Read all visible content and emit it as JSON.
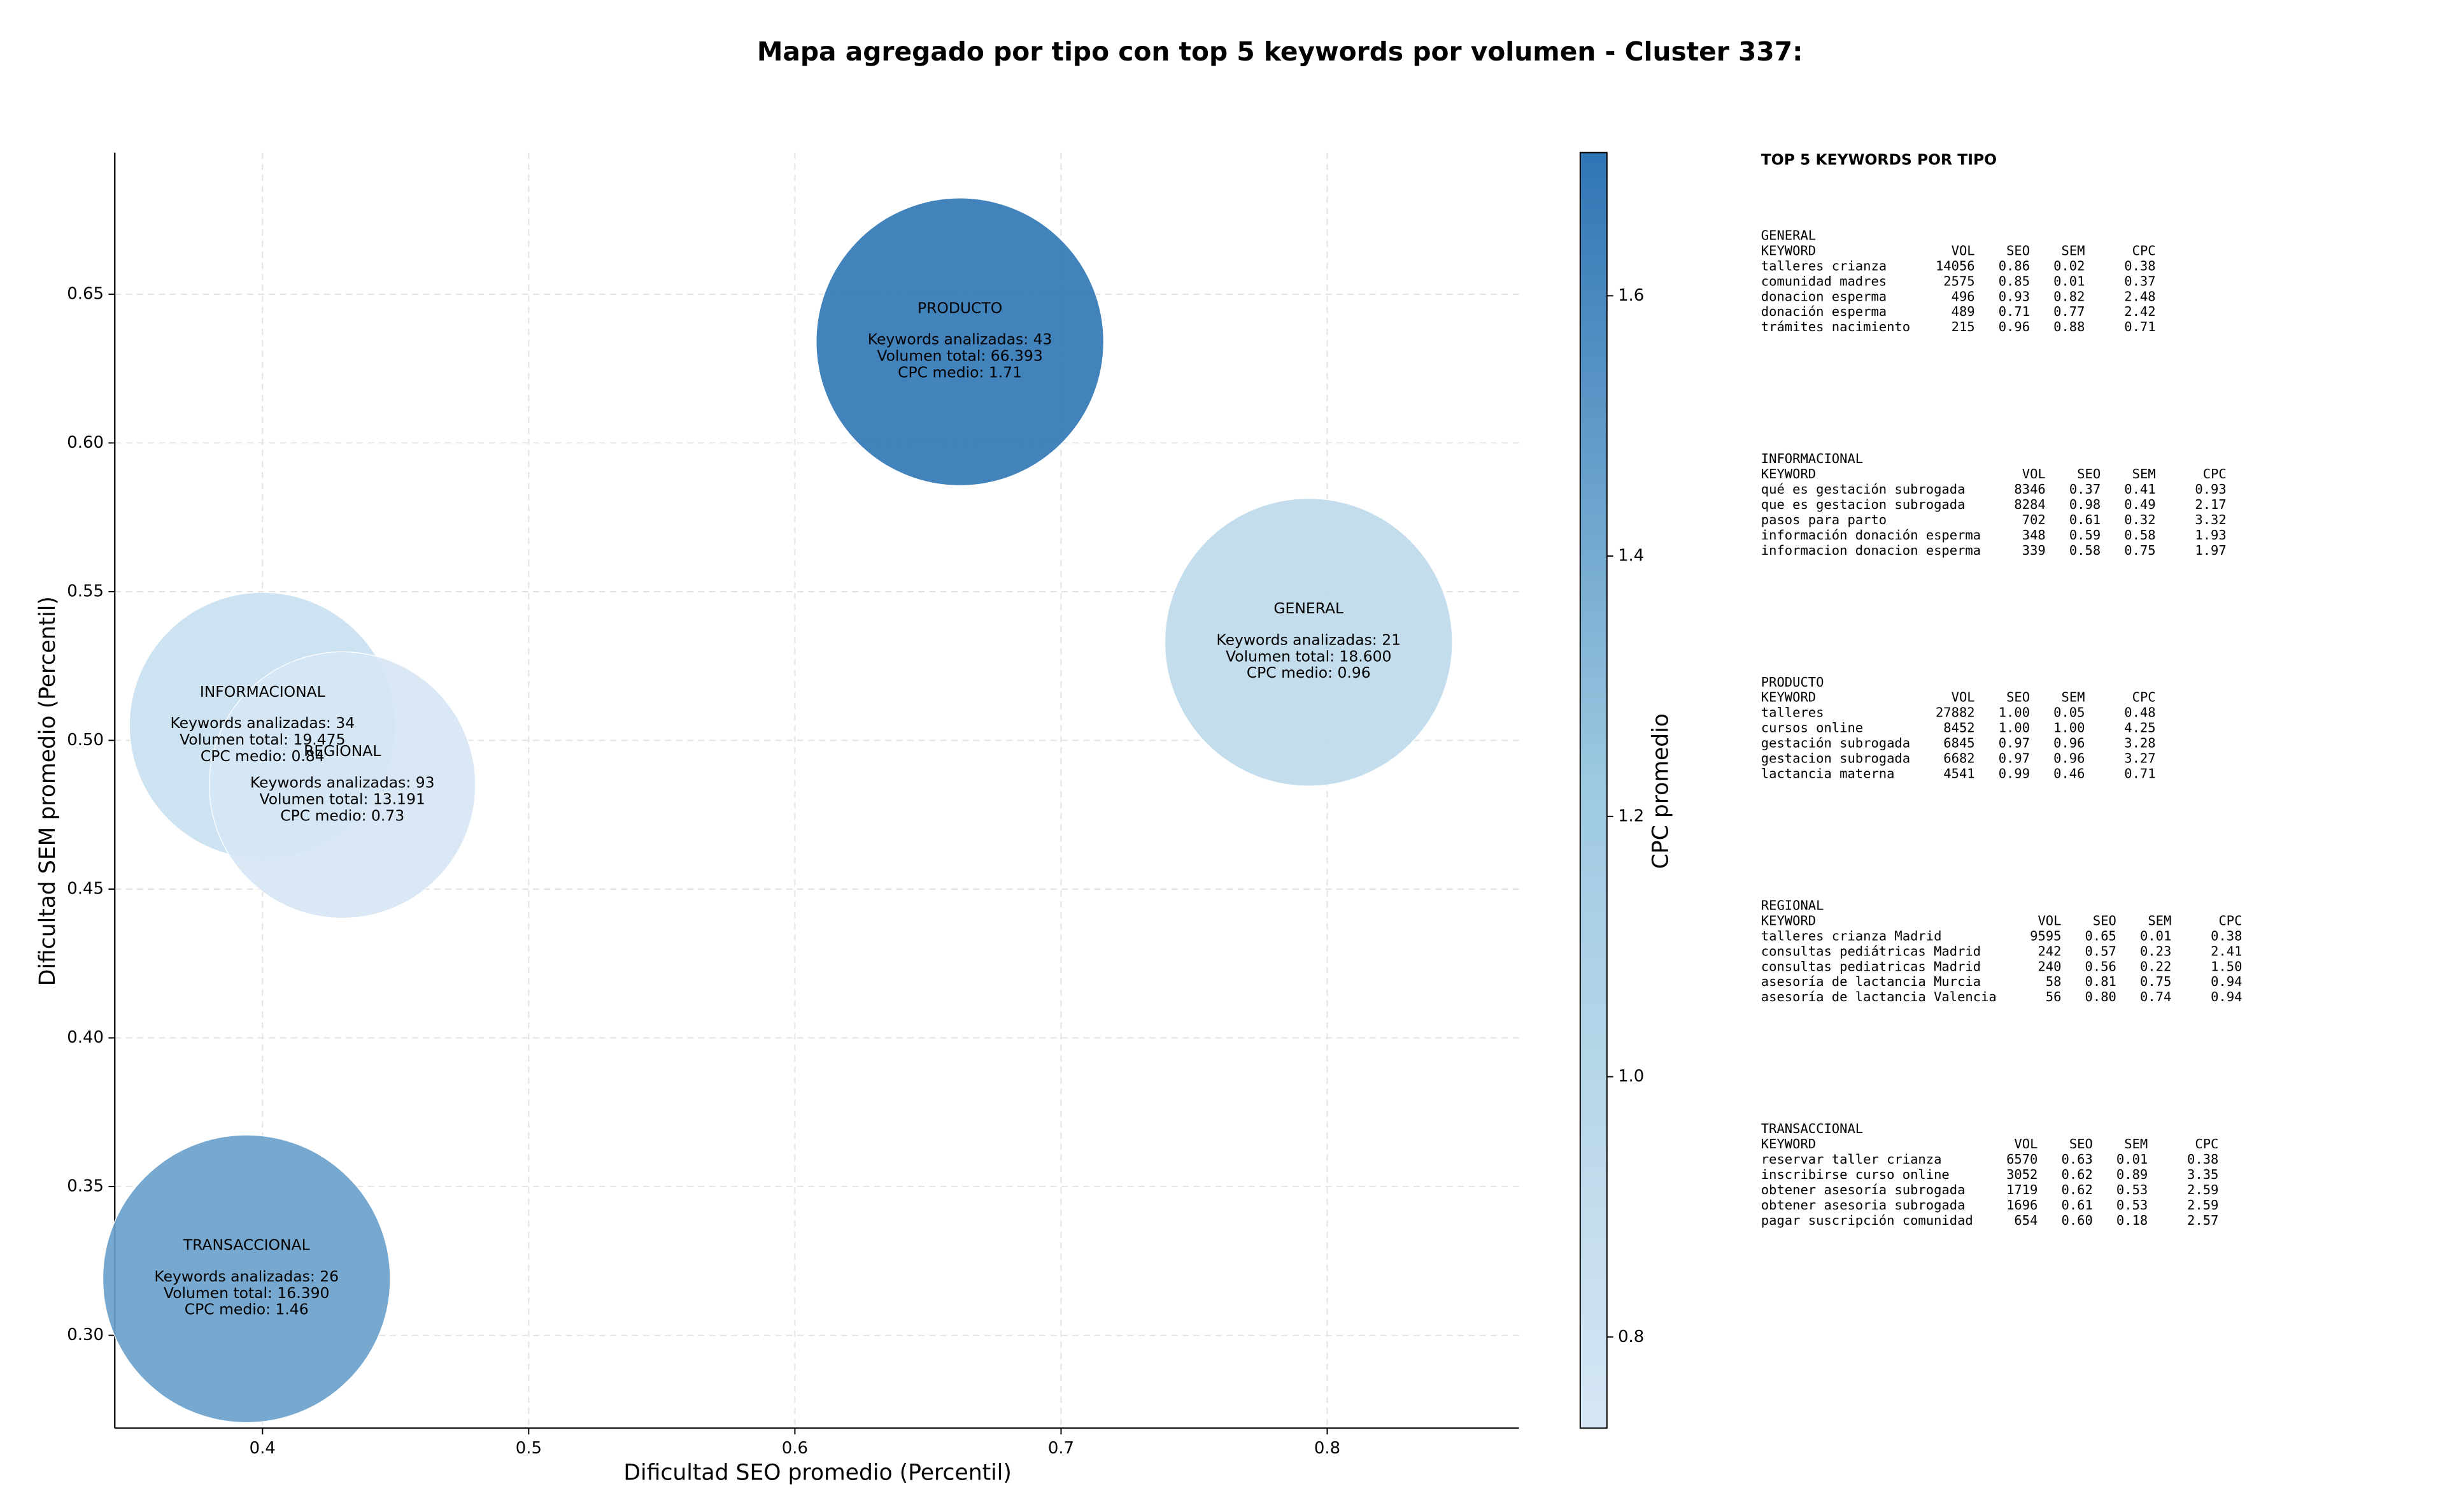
{
  "chart_data": {
    "type": "bubble",
    "title": "Mapa agregado por tipo con top 5 keywords por volumen - Cluster 337:",
    "xlabel": "Dificultad SEO promedio (Percentil)",
    "ylabel": "Dificultad SEM promedio (Percentil)",
    "categories": [
      "GENERAL",
      "INFORMACIONAL",
      "PRODUCTO",
      "REGIONAL",
      "TRANSACCIONAL"
    ],
    "x": [
      0.793,
      0.4,
      0.662,
      0.43,
      0.394
    ],
    "values": [
      0.533,
      0.505,
      0.634,
      0.485,
      0.319
    ],
    "sizes": [
      0.054,
      0.05,
      0.054,
      0.05,
      0.054
    ],
    "color_values": [
      0.96,
      0.84,
      1.71,
      0.73,
      1.46
    ],
    "annotations": [
      [
        "Keywords analizadas: 21",
        "Volumen total: 18.600",
        "CPC medio: 0.96"
      ],
      [
        "Keywords analizadas: 34",
        "Volumen total: 19.475",
        "CPC medio: 0.84"
      ],
      [
        "Keywords analizadas: 43",
        "Volumen total: 66.393",
        "CPC medio: 1.71"
      ],
      [
        "Keywords analizadas: 93",
        "Volumen total: 13.191",
        "CPC medio: 0.73"
      ],
      [
        "Keywords analizadas: 26",
        "Volumen total: 16.390",
        "CPC medio: 1.46"
      ]
    ],
    "xlim": [
      0.3445,
      0.872
    ],
    "ylim": [
      0.2688,
      0.6976
    ],
    "xticks": [
      0.4,
      0.5,
      0.6,
      0.7,
      0.8
    ],
    "yticks": [
      {
        "value": 0.3,
        "label": "0.30"
      },
      0.35,
      {
        "value": 0.4,
        "label": "0.40"
      },
      0.45,
      {
        "value": 0.5,
        "label": "0.50"
      },
      0.55,
      {
        "value": 0.6,
        "label": "0.60"
      },
      0.65
    ],
    "clim": [
      0.73,
      1.71
    ],
    "cticks": [
      0.8,
      {
        "value": 1.0,
        "label": "1.0"
      },
      1.2,
      1.4,
      1.6
    ],
    "colorbar_label": "CPC promedio",
    "colorscale": [
      "#d6e6f4",
      "#9ecae1",
      "#2f75b5"
    ],
    "grid": true
  },
  "side_panel": {
    "title": "TOP 5 KEYWORDS POR TIPO",
    "groups": [
      {
        "name": "GENERAL",
        "columns": [
          "KEYWORD",
          "VOL",
          "SEO",
          "SEM",
          "CPC"
        ],
        "rows": [
          [
            "talleres crianza",
            "14056",
            "0.86",
            "0.02",
            "0.38"
          ],
          [
            "comunidad madres",
            "2575",
            "0.85",
            "0.01",
            "0.37"
          ],
          [
            "donacion esperma",
            "496",
            "0.93",
            "0.82",
            "2.48"
          ],
          [
            "donación esperma",
            "489",
            "0.71",
            "0.77",
            "2.42"
          ],
          [
            "trámites nacimiento",
            "215",
            "0.96",
            "0.88",
            "0.71"
          ]
        ]
      },
      {
        "name": "INFORMACIONAL",
        "columns": [
          "KEYWORD",
          "VOL",
          "SEO",
          "SEM",
          "CPC"
        ],
        "rows": [
          [
            "qué es gestación subrogada",
            "8346",
            "0.37",
            "0.41",
            "0.93"
          ],
          [
            "que es gestacion subrogada",
            "8284",
            "0.98",
            "0.49",
            "2.17"
          ],
          [
            "pasos para parto",
            "702",
            "0.61",
            "0.32",
            "3.32"
          ],
          [
            "información donación esperma",
            "348",
            "0.59",
            "0.58",
            "1.93"
          ],
          [
            "informacion donacion esperma",
            "339",
            "0.58",
            "0.75",
            "1.97"
          ]
        ]
      },
      {
        "name": "PRODUCTO",
        "columns": [
          "KEYWORD",
          "VOL",
          "SEO",
          "SEM",
          "CPC"
        ],
        "rows": [
          [
            "talleres",
            "27882",
            "1.00",
            "0.05",
            "0.48"
          ],
          [
            "cursos online",
            "8452",
            "1.00",
            "1.00",
            "4.25"
          ],
          [
            "gestación subrogada",
            "6845",
            "0.97",
            "0.96",
            "3.28"
          ],
          [
            "gestacion subrogada",
            "6682",
            "0.97",
            "0.96",
            "3.27"
          ],
          [
            "lactancia materna",
            "4541",
            "0.99",
            "0.46",
            "0.71"
          ]
        ]
      },
      {
        "name": "REGIONAL",
        "columns": [
          "KEYWORD",
          "VOL",
          "SEO",
          "SEM",
          "CPC"
        ],
        "rows": [
          [
            "talleres crianza Madrid",
            "9595",
            "0.65",
            "0.01",
            "0.38"
          ],
          [
            "consultas pediátricas Madrid",
            "242",
            "0.57",
            "0.23",
            "2.41"
          ],
          [
            "consultas pediatricas Madrid",
            "240",
            "0.56",
            "0.22",
            "1.50"
          ],
          [
            "asesoría de lactancia Murcia",
            "58",
            "0.81",
            "0.75",
            "0.94"
          ],
          [
            "asesoría de lactancia Valencia",
            "56",
            "0.80",
            "0.74",
            "0.94"
          ]
        ]
      },
      {
        "name": "TRANSACCIONAL",
        "columns": [
          "KEYWORD",
          "VOL",
          "SEO",
          "SEM",
          "CPC"
        ],
        "rows": [
          [
            "reservar taller crianza",
            "6570",
            "0.63",
            "0.01",
            "0.38"
          ],
          [
            "inscribirse curso online",
            "3052",
            "0.62",
            "0.89",
            "3.35"
          ],
          [
            "obtener asesoría subrogada",
            "1719",
            "0.62",
            "0.53",
            "2.59"
          ],
          [
            "obtener asesoria subrogada",
            "1696",
            "0.61",
            "0.53",
            "2.59"
          ],
          [
            "pagar suscripción comunidad",
            "654",
            "0.60",
            "0.18",
            "2.57"
          ]
        ]
      }
    ]
  }
}
